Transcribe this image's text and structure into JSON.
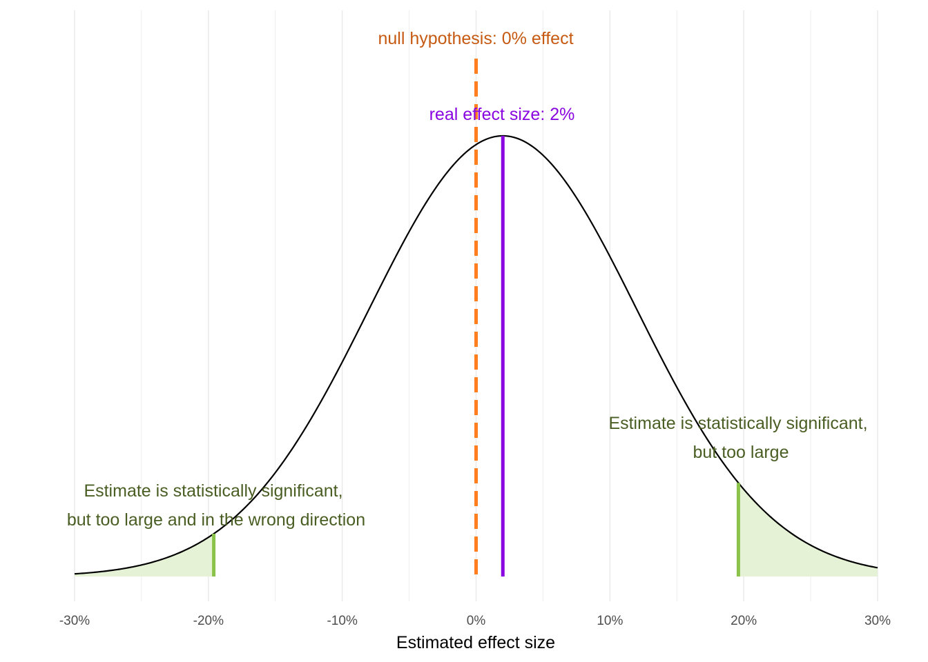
{
  "chart_data": {
    "type": "area",
    "xlabel": "Estimated effect size",
    "ylabel": "",
    "xlim": [
      -30,
      30
    ],
    "x_ticks": [
      -30,
      -20,
      -10,
      0,
      10,
      20,
      30
    ],
    "x_tick_labels": [
      "-30%",
      "-20%",
      "-10%",
      "0%",
      "10%",
      "20%",
      "30%"
    ],
    "grid": "vertical major and minor",
    "distribution": {
      "kind": "normal",
      "mean": 2,
      "sd": 10
    },
    "significance_cutoffs": {
      "lower": -19.6,
      "upper": 19.6
    },
    "reference_lines": {
      "null_effect": 0,
      "real_effect": 2
    },
    "annotations": {
      "null_label": "null hypothesis: 0% effect",
      "real_label": "real effect size: 2%",
      "right_region": [
        "Estimate is statistically significant,",
        "but too large"
      ],
      "left_region": [
        "Estimate is statistically significant,",
        "but too large and in the wrong direction"
      ]
    },
    "colors": {
      "curve": "#000000",
      "null_line": "#ff7f1e",
      "null_text": "#c65a12",
      "real_line": "#8a06e0",
      "real_text": "#8a06e0",
      "cutoff_line": "#8bc34a",
      "shade": "#e6f2d6",
      "annotation_text": "#4a5e23",
      "grid": "#ebebeb"
    }
  }
}
